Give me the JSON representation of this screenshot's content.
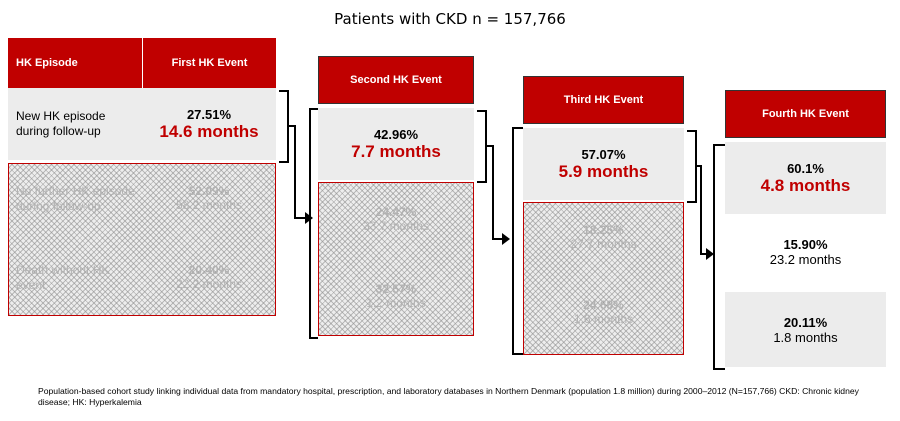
{
  "title": "Patients with CKD  n = 157,766",
  "col_header": "HK Episode",
  "rows": {
    "new": "New HK episode during follow-up",
    "no_further": "No further HK episode during follow-up",
    "death": "Death without HK event"
  },
  "events": [
    {
      "header": "First HK Event",
      "new_pct": "27.51%",
      "new_months": "14.6 months",
      "no_further_pct": "52.09%",
      "no_further_months": "58.2 months",
      "death_pct": "20.40%",
      "death_months": "22.2 months"
    },
    {
      "header": "Second HK Event",
      "new_pct": "42.96%",
      "new_months": "7.7 months",
      "no_further_pct": "24.47%",
      "no_further_months": "33.7 months",
      "death_pct": "32.57%",
      "death_months": "1.2 months"
    },
    {
      "header": "Third HK Event",
      "new_pct": "57.07%",
      "new_months": "5.9 months",
      "no_further_pct": "18.25%",
      "no_further_months": "27.7 months",
      "death_pct": "24.68%",
      "death_months": "1.6 months"
    },
    {
      "header": "Fourth HK Event",
      "new_pct": "60.1%",
      "new_months": "4.8 months",
      "no_further_pct": "15.90%",
      "no_further_months": "23.2 months",
      "death_pct": "20.11%",
      "death_months": "1.8 months"
    }
  ],
  "footer": "Population-based cohort study linking individual data from mandatory hospital, prescription, and laboratory databases in Northern Denmark (population 1.8 million) during 2000–2012 (N=157,766) CKD: Chronic kidney disease; HK: Hyperkalemia",
  "colors": {
    "accent": "#c00000",
    "cell": "#ececec",
    "faded_text": "#b2b2b2"
  }
}
